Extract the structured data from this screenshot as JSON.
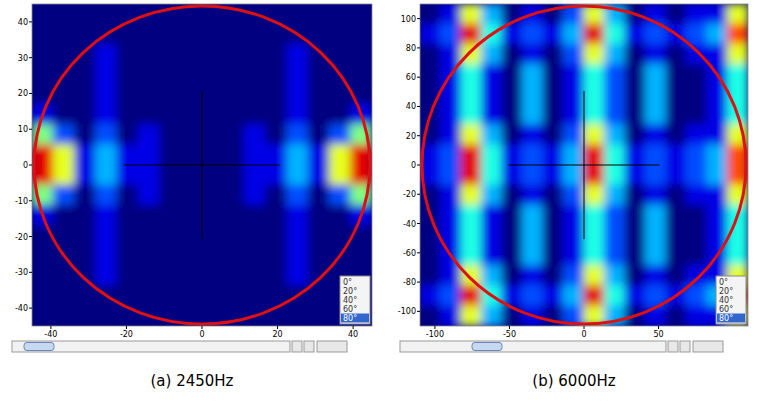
{
  "chart_data": [
    {
      "type": "heatmap",
      "title": "(a) 2450Hz",
      "xlim": [
        -45,
        45
      ],
      "ylim": [
        -45,
        45
      ],
      "xticks": [
        -40,
        -20,
        0,
        20,
        40
      ],
      "yticks": [
        40,
        30,
        20,
        10,
        0,
        -10,
        -20,
        -30,
        -40
      ],
      "value_range": [
        0,
        10
      ],
      "angle_options": [
        "0°",
        "20°",
        "40°",
        "60°",
        "80°"
      ],
      "cells": [
        [
          0,
          0,
          0,
          0,
          0,
          0,
          0,
          0,
          0,
          0,
          0,
          0,
          0,
          0,
          0,
          0
        ],
        [
          0,
          0,
          0,
          0,
          0,
          0,
          0,
          0,
          0,
          0,
          0,
          0,
          0,
          0,
          0,
          0
        ],
        [
          0,
          0,
          0,
          1,
          0,
          0,
          0,
          0,
          0,
          0,
          0,
          0,
          1,
          0,
          0,
          0
        ],
        [
          0,
          0,
          0,
          1,
          0,
          0,
          0,
          0,
          0,
          0,
          0,
          0,
          1,
          0,
          0,
          0
        ],
        [
          0,
          0,
          0,
          1,
          0,
          0,
          0,
          0,
          0,
          0,
          0,
          0,
          1,
          0,
          0,
          0
        ],
        [
          1,
          0,
          0,
          1,
          0,
          0,
          0,
          0,
          0,
          0,
          0,
          0,
          1,
          0,
          0,
          1
        ],
        [
          5,
          2,
          0,
          2,
          0,
          1,
          0,
          0,
          0,
          0,
          1,
          0,
          2,
          0,
          2,
          5
        ],
        [
          9,
          6,
          1,
          3,
          1,
          1,
          0,
          0,
          0,
          0,
          1,
          1,
          3,
          1,
          6,
          9
        ],
        [
          9,
          6,
          1,
          3,
          1,
          1,
          0,
          0,
          0,
          0,
          1,
          1,
          3,
          1,
          6,
          9
        ],
        [
          5,
          2,
          0,
          2,
          0,
          1,
          0,
          0,
          0,
          0,
          1,
          0,
          2,
          0,
          2,
          5
        ],
        [
          1,
          0,
          0,
          1,
          0,
          0,
          0,
          0,
          0,
          0,
          0,
          0,
          1,
          0,
          0,
          1
        ],
        [
          0,
          0,
          0,
          1,
          0,
          0,
          0,
          0,
          0,
          0,
          0,
          0,
          1,
          0,
          0,
          0
        ],
        [
          0,
          0,
          0,
          1,
          0,
          0,
          0,
          0,
          0,
          0,
          0,
          0,
          1,
          0,
          0,
          0
        ],
        [
          0,
          0,
          0,
          1,
          0,
          0,
          0,
          0,
          0,
          0,
          0,
          0,
          1,
          0,
          0,
          0
        ],
        [
          0,
          0,
          0,
          0,
          0,
          0,
          0,
          0,
          0,
          0,
          0,
          0,
          0,
          0,
          0,
          0
        ],
        [
          0,
          0,
          0,
          0,
          0,
          0,
          0,
          0,
          0,
          0,
          0,
          0,
          0,
          0,
          0,
          0
        ]
      ]
    },
    {
      "type": "heatmap",
      "title": "(b) 6000Hz",
      "xlim": [
        -110,
        110
      ],
      "ylim": [
        -110,
        110
      ],
      "xticks": [
        -100,
        -50,
        0,
        50
      ],
      "yticks": [
        100,
        80,
        60,
        40,
        20,
        0,
        -20,
        -40,
        -60,
        -80,
        -100
      ],
      "value_range": [
        0,
        10
      ],
      "angle_options": [
        "0°",
        "20°",
        "40°",
        "60°",
        "80°"
      ],
      "cells": [
        [
          0,
          1,
          6,
          3,
          0,
          1,
          0,
          2,
          6,
          3,
          0,
          1,
          0,
          1,
          1,
          6
        ],
        [
          1,
          2,
          9,
          4,
          1,
          2,
          1,
          3,
          9,
          4,
          1,
          2,
          1,
          2,
          3,
          8
        ],
        [
          0,
          1,
          6,
          3,
          0,
          1,
          0,
          2,
          6,
          3,
          0,
          1,
          0,
          1,
          1,
          6
        ],
        [
          0,
          1,
          4,
          1,
          0,
          3,
          0,
          1,
          4,
          2,
          0,
          3,
          0,
          0,
          1,
          4
        ],
        [
          0,
          1,
          4,
          1,
          0,
          3,
          0,
          1,
          4,
          2,
          0,
          3,
          0,
          0,
          1,
          4
        ],
        [
          0,
          1,
          4,
          1,
          0,
          3,
          0,
          1,
          4,
          2,
          0,
          3,
          0,
          0,
          1,
          4
        ],
        [
          0,
          1,
          6,
          3,
          0,
          1,
          0,
          2,
          6,
          3,
          0,
          1,
          0,
          1,
          1,
          6
        ],
        [
          1,
          2,
          9,
          4,
          1,
          2,
          1,
          3,
          9,
          4,
          1,
          2,
          1,
          2,
          3,
          8
        ],
        [
          1,
          2,
          9,
          4,
          1,
          2,
          1,
          3,
          9,
          4,
          1,
          2,
          1,
          2,
          3,
          8
        ],
        [
          0,
          1,
          6,
          3,
          0,
          1,
          0,
          2,
          6,
          3,
          0,
          1,
          0,
          1,
          1,
          6
        ],
        [
          0,
          1,
          4,
          1,
          0,
          3,
          0,
          1,
          4,
          2,
          0,
          3,
          0,
          0,
          1,
          4
        ],
        [
          0,
          1,
          4,
          1,
          0,
          3,
          0,
          1,
          4,
          2,
          0,
          3,
          0,
          0,
          1,
          4
        ],
        [
          0,
          1,
          4,
          1,
          0,
          3,
          0,
          1,
          4,
          2,
          0,
          3,
          0,
          0,
          1,
          4
        ],
        [
          0,
          1,
          6,
          3,
          0,
          1,
          0,
          2,
          6,
          3,
          0,
          1,
          0,
          1,
          1,
          6
        ],
        [
          1,
          2,
          9,
          4,
          1,
          2,
          1,
          3,
          9,
          4,
          1,
          2,
          1,
          2,
          3,
          8
        ],
        [
          0,
          1,
          6,
          3,
          0,
          1,
          0,
          2,
          6,
          3,
          0,
          1,
          0,
          1,
          1,
          6
        ]
      ]
    }
  ]
}
